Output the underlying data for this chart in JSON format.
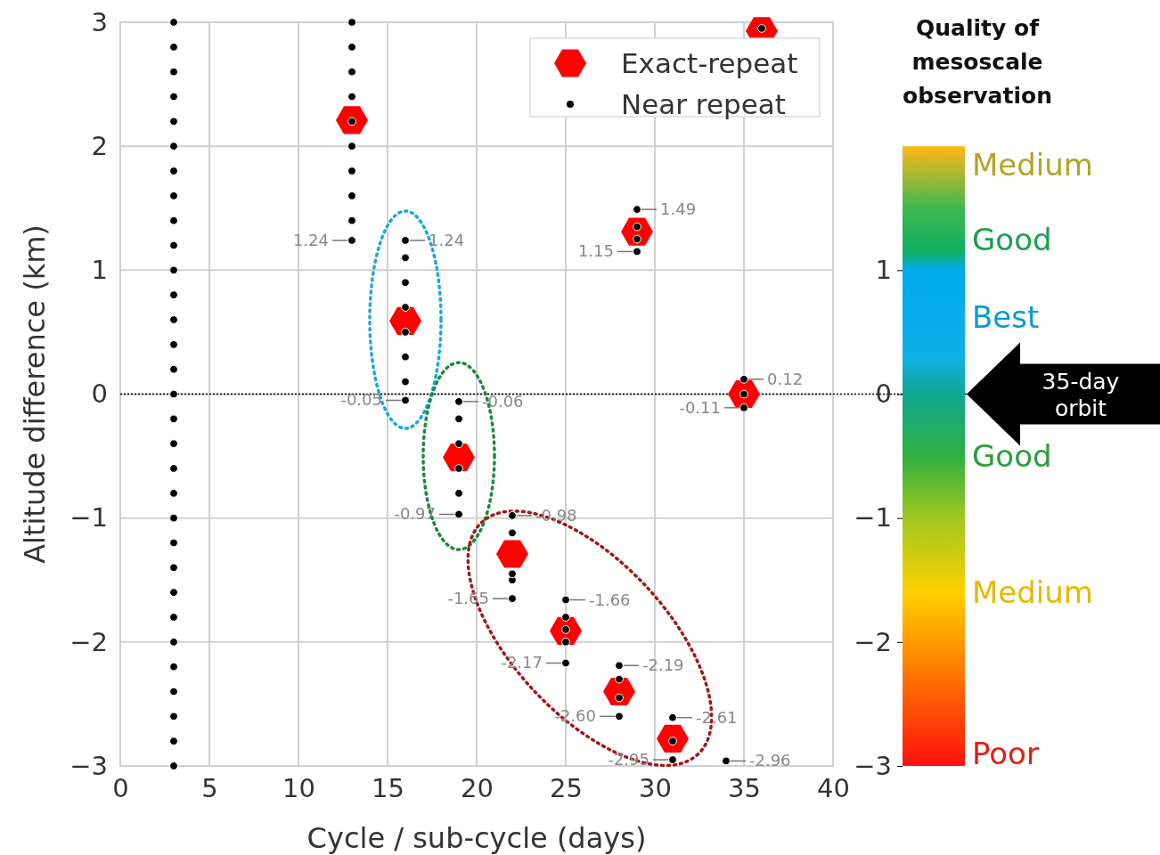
{
  "chart_data": {
    "type": "scatter",
    "xlabel": "Cycle / sub-cycle (days)",
    "ylabel": "Altitude difference (km)",
    "xlim": [
      0,
      40
    ],
    "xticks": [
      0,
      5,
      10,
      15,
      20,
      25,
      30,
      35,
      40
    ],
    "ylim": [
      -3,
      3
    ],
    "yticks": [
      {
        "value": -3,
        "label": "−3"
      },
      {
        "value": -2,
        "label": "−2"
      },
      {
        "value": -1,
        "label": "−1"
      },
      0,
      1,
      2,
      3
    ],
    "grid": true,
    "legend": "top right",
    "series": [
      {
        "name": "Exact-repeat",
        "color": "#ff0000",
        "x": [
          13,
          16,
          19,
          22,
          25,
          28,
          31,
          29,
          35,
          36
        ],
        "values": [
          2.21,
          0.59,
          -0.51,
          -1.29,
          -1.91,
          -2.4,
          -2.78,
          1.31,
          0.0,
          2.93
        ]
      },
      {
        "name": "Near repeat",
        "color": "#000000",
        "marker": "circle",
        "x": [
          3,
          3,
          3,
          3,
          3,
          3,
          3,
          3,
          3,
          3,
          3,
          3,
          3,
          3,
          3,
          3,
          3,
          3,
          3,
          3,
          3,
          3,
          3,
          3,
          3,
          3,
          3,
          3,
          3,
          3,
          3,
          13,
          13,
          13,
          13,
          13,
          13,
          13,
          13,
          13,
          13,
          16,
          16,
          16,
          16,
          16,
          16,
          16,
          16,
          19,
          19,
          19,
          19,
          19,
          19,
          22,
          22,
          22,
          22,
          22,
          25,
          25,
          25,
          25,
          25,
          28,
          28,
          28,
          28,
          31,
          31,
          31,
          34,
          29,
          29,
          29,
          29,
          35,
          35,
          35,
          36
        ],
        "values": [
          -3.0,
          -2.8,
          -2.6,
          -2.4,
          -2.2,
          -2.0,
          -1.8,
          -1.6,
          -1.4,
          -1.2,
          -1.0,
          -0.8,
          -0.6,
          -0.4,
          -0.2,
          0.0,
          0.2,
          0.4,
          0.6,
          0.8,
          1.0,
          1.2,
          1.4,
          1.6,
          1.8,
          2.0,
          2.2,
          2.4,
          2.6,
          2.8,
          3.0,
          1.24,
          1.4,
          1.6,
          1.8,
          2.0,
          2.2,
          2.4,
          2.6,
          2.8,
          3.0,
          -0.05,
          0.1,
          0.3,
          0.5,
          0.7,
          0.9,
          1.1,
          1.24,
          -0.97,
          -0.8,
          -0.6,
          -0.4,
          -0.2,
          -0.06,
          -1.65,
          -1.5,
          -1.45,
          -1.12,
          -0.98,
          -2.17,
          -2.0,
          -1.9,
          -1.8,
          -1.66,
          -2.6,
          -2.45,
          -2.3,
          -2.19,
          -2.95,
          -2.8,
          -2.61,
          -2.96,
          1.15,
          1.25,
          1.35,
          1.49,
          -0.11,
          0.0,
          0.12,
          2.95
        ]
      }
    ],
    "ref_lines": [
      {
        "axis": "y",
        "value": 0,
        "label": "35-day orbit",
        "line_style": "dotted",
        "color": "#000000"
      }
    ],
    "clabel": "Quality of mesoscale observation",
    "clim": [
      -3,
      2
    ],
    "cticks": [
      {
        "value": -3,
        "label": "−3"
      },
      {
        "value": -2,
        "label": "−2"
      },
      {
        "value": -1,
        "label": "−1"
      },
      0,
      1
    ],
    "annotations": [
      {
        "text": "1.24",
        "x": 13,
        "y": 1.24
      },
      {
        "text": "1.24",
        "x": 16,
        "y": 1.24
      },
      {
        "text": "-0.05",
        "x": 16,
        "y": -0.05
      },
      {
        "text": "-0.06",
        "x": 19,
        "y": -0.06
      },
      {
        "text": "-0.97",
        "x": 19,
        "y": -0.97
      },
      {
        "text": "-0.98",
        "x": 22,
        "y": -0.98
      },
      {
        "text": "-1.65",
        "x": 22,
        "y": -1.65
      },
      {
        "text": "-1.66",
        "x": 25,
        "y": -1.66
      },
      {
        "text": "-2.17",
        "x": 25,
        "y": -2.17
      },
      {
        "text": "-2.19",
        "x": 28,
        "y": -2.19
      },
      {
        "text": "-2.60",
        "x": 28,
        "y": -2.6
      },
      {
        "text": "-2.61",
        "x": 31,
        "y": -2.61
      },
      {
        "text": "-2.95",
        "x": 31,
        "y": -2.95
      },
      {
        "text": "-2.96",
        "x": 34,
        "y": -2.96
      },
      {
        "text": "1.15",
        "x": 29,
        "y": 1.15
      },
      {
        "text": "1.49",
        "x": 29,
        "y": 1.49
      },
      {
        "text": "-0.11",
        "x": 35,
        "y": -0.11
      },
      {
        "text": "0.12",
        "x": 35,
        "y": 0.12
      },
      "Medium",
      "Good",
      "Best",
      "Good",
      "Medium",
      "Poor"
    ]
  }
}
